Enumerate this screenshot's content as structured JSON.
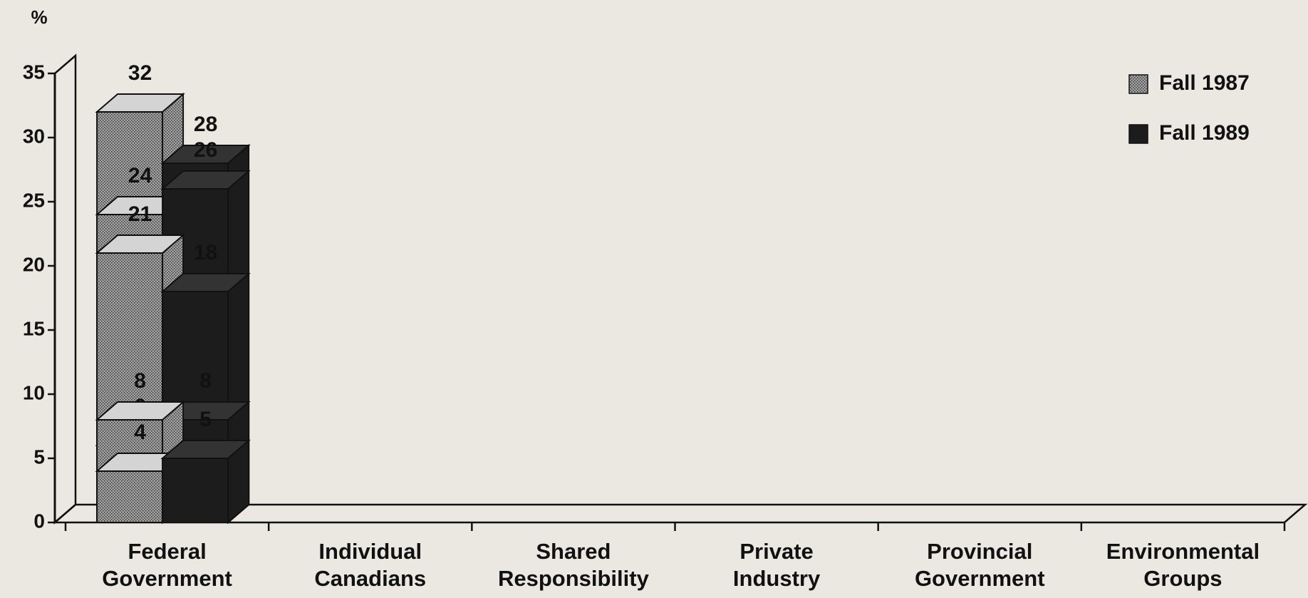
{
  "chart_data": {
    "type": "bar3d",
    "y_label": "%",
    "categories": [
      "Federal Government",
      "Individual Canadians",
      "Shared Responsibility",
      "Private Industry",
      "Provincial Government",
      "Environmental Groups"
    ],
    "series": [
      {
        "name": "Fall 1987",
        "color": "#a3a3a3",
        "values": [
          32,
          24,
          21,
          6,
          8,
          4
        ]
      },
      {
        "name": "Fall 1989",
        "color": "#1c1c1c",
        "values": [
          28,
          26,
          18,
          8,
          5,
          5
        ]
      }
    ],
    "ylim": [
      0,
      35
    ],
    "yticks": [
      0,
      5,
      10,
      15,
      20,
      25,
      30,
      35
    ],
    "legend": "top-right"
  }
}
